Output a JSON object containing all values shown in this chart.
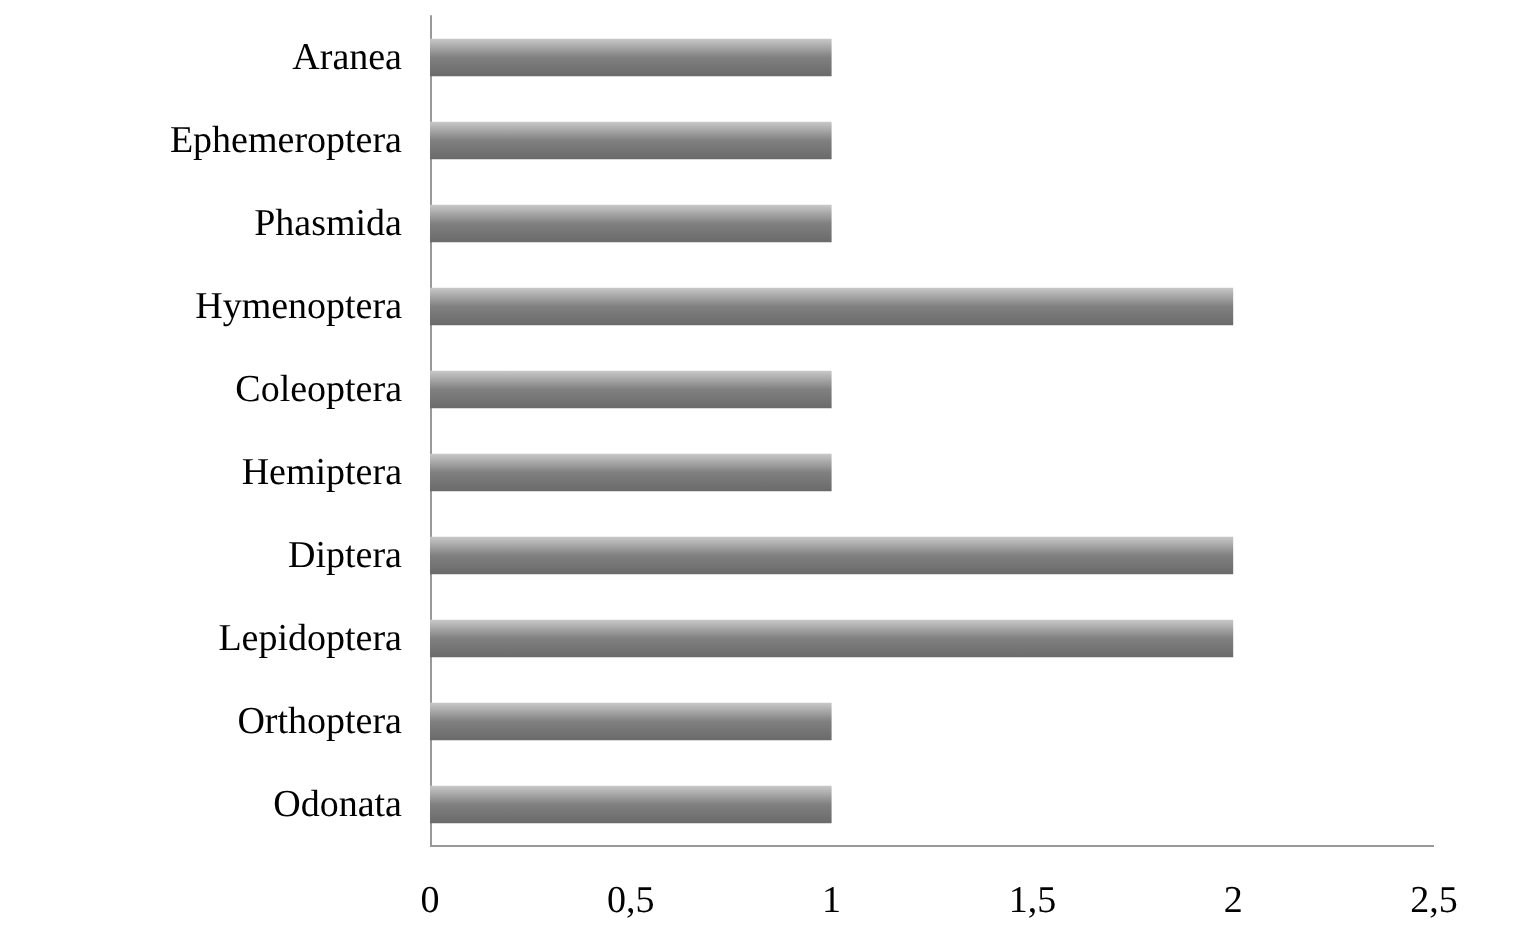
{
  "chart_data": {
    "type": "bar",
    "orientation": "horizontal",
    "categories": [
      "Aranea",
      "Ephemeroptera",
      "Phasmida",
      "Hymenoptera",
      "Coleoptera",
      "Hemiptera",
      "Diptera",
      "Lepidoptera",
      "Orthoptera",
      "Odonata"
    ],
    "values": [
      1,
      1,
      1,
      2,
      1,
      1,
      2,
      2,
      1,
      1
    ],
    "color": "#808080",
    "xlim": [
      0,
      2.5
    ],
    "xticks": [
      0,
      {
        "value": 0.5,
        "label": "0,5"
      },
      1,
      {
        "value": 1.5,
        "label": "1,5"
      },
      2,
      {
        "value": 2.5,
        "label": "2,5"
      }
    ],
    "grid": false
  }
}
